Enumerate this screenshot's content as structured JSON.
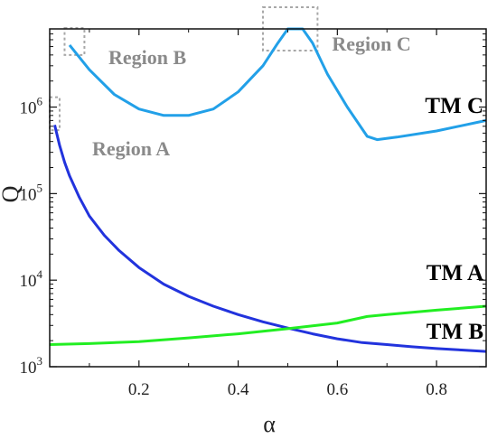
{
  "chart_data": {
    "type": "line",
    "title": "",
    "xlabel": "α",
    "ylabel": "Q",
    "xlim": [
      0.02,
      0.9
    ],
    "ylim": [
      1000,
      8000000
    ],
    "yscale": "log",
    "grid": false,
    "x_ticks": [
      {
        "value": 0.2,
        "label": "0.2"
      },
      {
        "value": 0.4,
        "label": "0.4"
      },
      {
        "value": 0.6,
        "label": "0.6"
      },
      {
        "value": 0.8,
        "label": "0.8"
      }
    ],
    "y_ticks": [
      {
        "value": 1000,
        "base": "10",
        "exp": "3"
      },
      {
        "value": 10000,
        "base": "10",
        "exp": "4"
      },
      {
        "value": 100000,
        "base": "10",
        "exp": "5"
      },
      {
        "value": 1000000,
        "base": "10",
        "exp": "6"
      }
    ],
    "series": [
      {
        "name": "TM A",
        "color": "#2233dd",
        "points": [
          [
            0.03,
            620000
          ],
          [
            0.04,
            360000
          ],
          [
            0.05,
            230000
          ],
          [
            0.06,
            160000
          ],
          [
            0.08,
            90000
          ],
          [
            0.1,
            55000
          ],
          [
            0.13,
            33000
          ],
          [
            0.16,
            22000
          ],
          [
            0.2,
            14000
          ],
          [
            0.25,
            9000
          ],
          [
            0.3,
            6500
          ],
          [
            0.35,
            5000
          ],
          [
            0.4,
            4000
          ],
          [
            0.45,
            3300
          ],
          [
            0.5,
            2800
          ],
          [
            0.55,
            2400
          ],
          [
            0.6,
            2100
          ],
          [
            0.65,
            1900
          ],
          [
            0.7,
            1800
          ],
          [
            0.75,
            1700
          ],
          [
            0.8,
            1620
          ],
          [
            0.85,
            1560
          ],
          [
            0.9,
            1500
          ]
        ]
      },
      {
        "name": "TM B",
        "color": "#22ee22",
        "points": [
          [
            0.02,
            1800
          ],
          [
            0.1,
            1850
          ],
          [
            0.2,
            1950
          ],
          [
            0.3,
            2150
          ],
          [
            0.4,
            2400
          ],
          [
            0.5,
            2750
          ],
          [
            0.6,
            3200
          ],
          [
            0.66,
            3800
          ],
          [
            0.7,
            4000
          ],
          [
            0.8,
            4500
          ],
          [
            0.9,
            5000
          ]
        ]
      },
      {
        "name": "TM C",
        "color": "#22a0e8",
        "points": [
          [
            0.06,
            5200000
          ],
          [
            0.1,
            2700000
          ],
          [
            0.15,
            1400000
          ],
          [
            0.2,
            950000
          ],
          [
            0.25,
            800000
          ],
          [
            0.3,
            800000
          ],
          [
            0.35,
            950000
          ],
          [
            0.4,
            1500000
          ],
          [
            0.45,
            3000000
          ],
          [
            0.48,
            5500000
          ],
          [
            0.5,
            8000000
          ],
          [
            0.53,
            8000000
          ],
          [
            0.55,
            5500000
          ],
          [
            0.58,
            2400000
          ],
          [
            0.62,
            1000000
          ],
          [
            0.66,
            460000
          ],
          [
            0.68,
            420000
          ],
          [
            0.72,
            450000
          ],
          [
            0.8,
            530000
          ],
          [
            0.9,
            700000
          ]
        ]
      }
    ],
    "annotations": [
      {
        "text": "TM A",
        "series": "TM A"
      },
      {
        "text": "TM B",
        "series": "TM B"
      },
      {
        "text": "TM C",
        "series": "TM C"
      },
      {
        "text": "Region A",
        "box_x": [
          0.02,
          0.04
        ],
        "box_y": [
          540000,
          1300000
        ]
      },
      {
        "text": "Region B",
        "box_x": [
          0.05,
          0.09
        ],
        "box_y": [
          4000000,
          9000000
        ]
      },
      {
        "text": "Region C",
        "box_x": [
          0.45,
          0.56
        ],
        "box_y": [
          4500000,
          16000000
        ]
      }
    ],
    "colors": {
      "axis": "#111111",
      "region_box": "#a8a8a8",
      "region_text": "#8a8a8a"
    }
  }
}
